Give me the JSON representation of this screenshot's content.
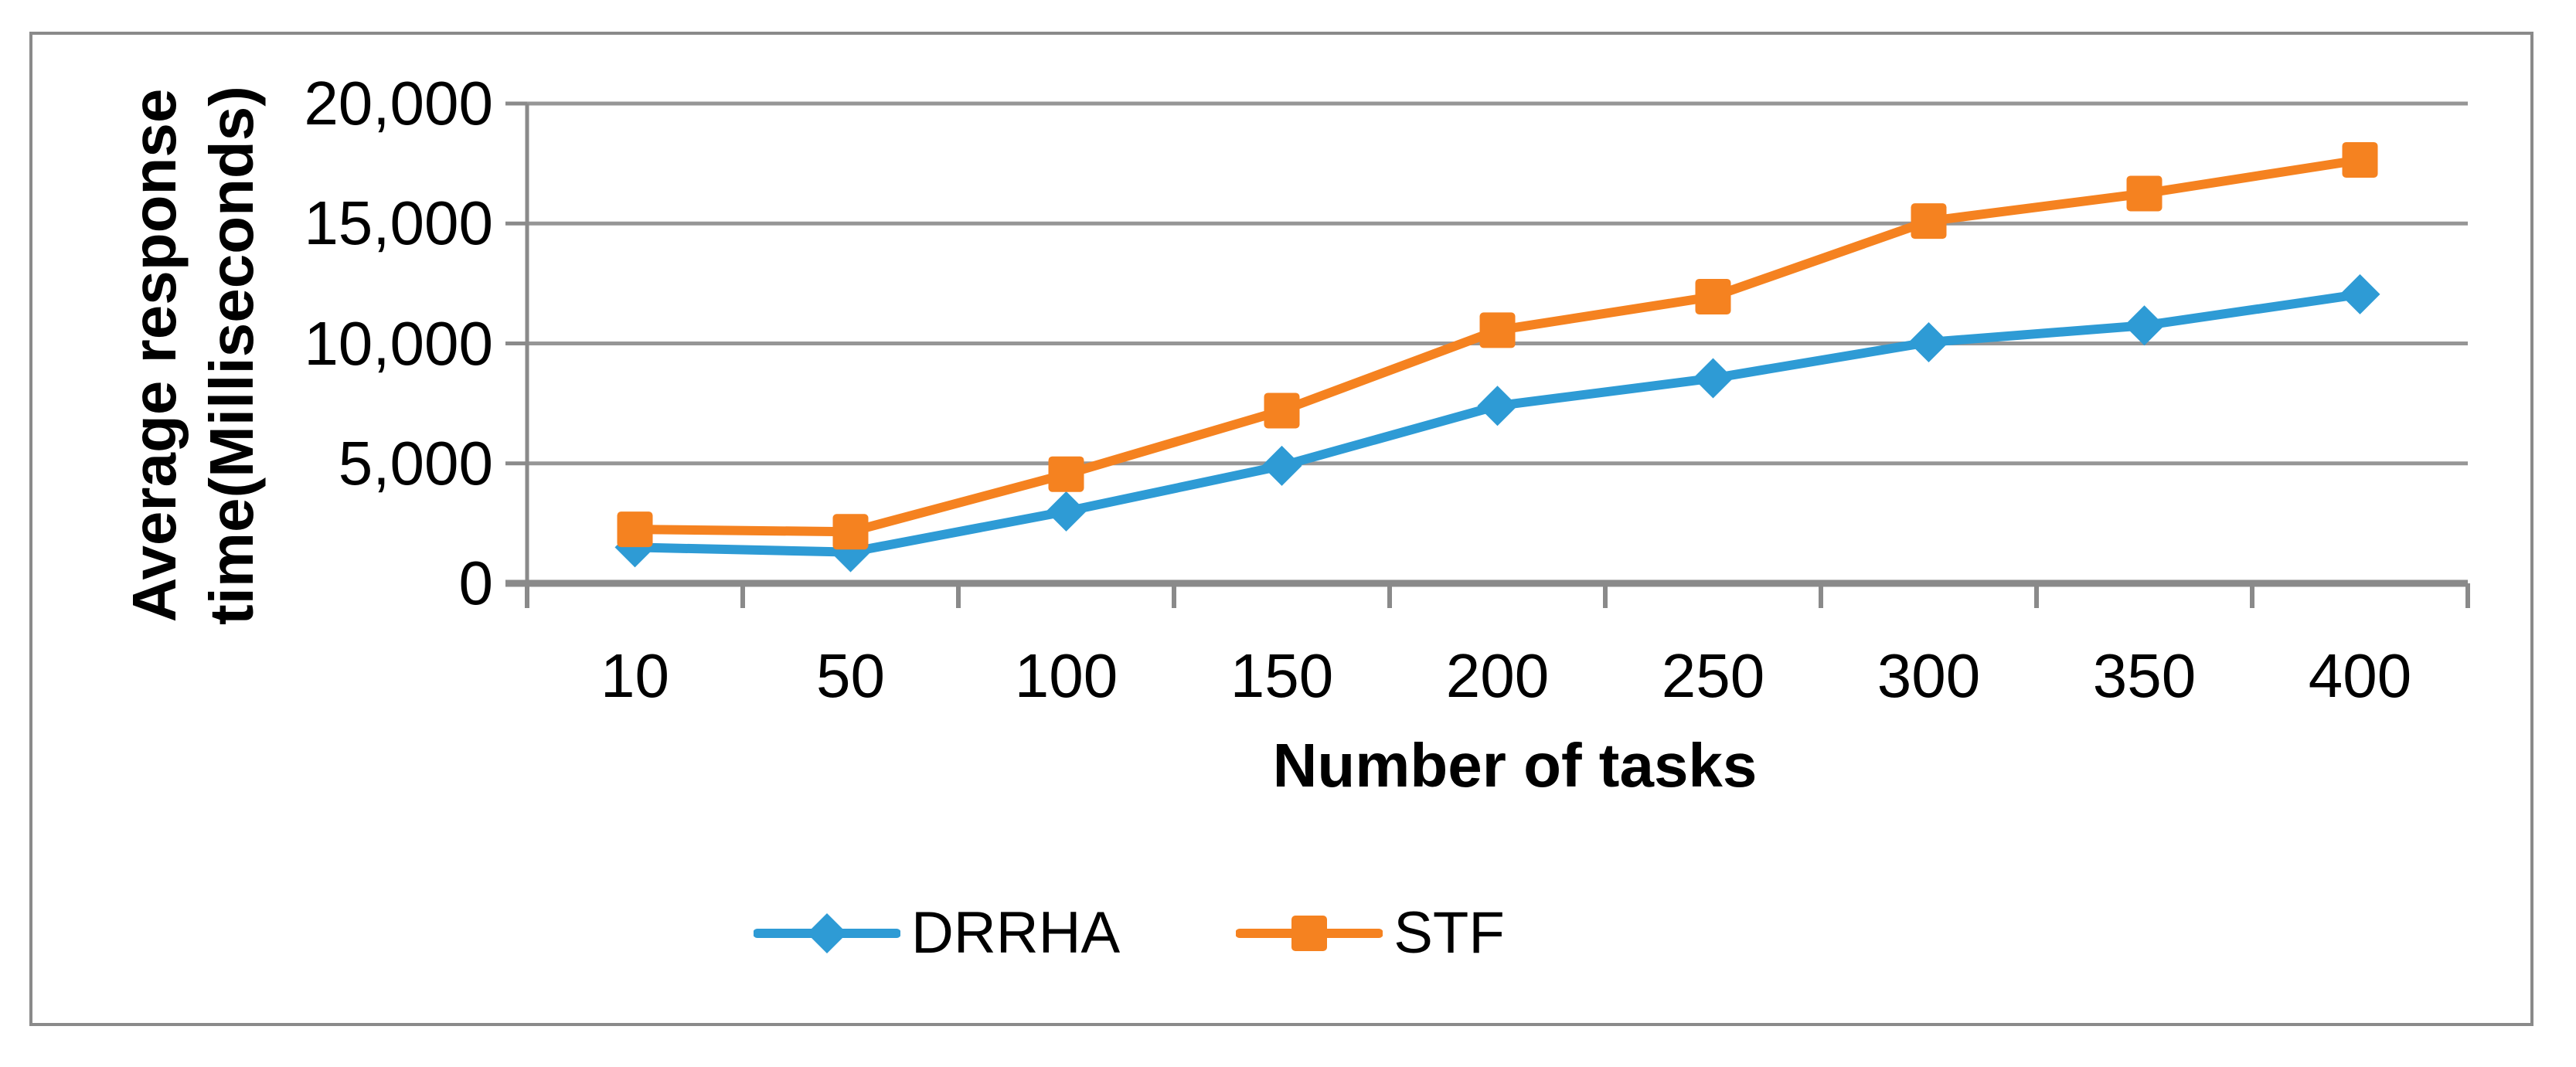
{
  "figure": {
    "border_color": "#8A8A8A",
    "background_color": "#FFFFFF"
  },
  "chart_data": {
    "type": "line",
    "title": "",
    "xlabel": "Number of tasks",
    "ylabel": "Average response time(Milliseconds)",
    "ylabel_lines": [
      "Average response",
      "time(Milliseconds)"
    ],
    "categories": [
      "10",
      "50",
      "100",
      "150",
      "200",
      "250",
      "300",
      "350",
      "400"
    ],
    "series": [
      {
        "name": "DRRHA",
        "color": "#2E9BD5",
        "marker": "diamond",
        "values": [
          1500,
          1300,
          3000,
          4900,
          7400,
          8550,
          10050,
          10750,
          12050
        ]
      },
      {
        "name": "STF",
        "color": "#F58220",
        "marker": "square",
        "values": [
          2250,
          2150,
          4550,
          7200,
          10550,
          11950,
          15100,
          16250,
          17650
        ]
      }
    ],
    "y_ticks": [
      {
        "label": "0",
        "value": 0
      },
      {
        "label": "5,000",
        "value": 5000
      },
      {
        "label": "10,000",
        "value": 10000
      },
      {
        "label": "15,000",
        "value": 15000
      },
      {
        "label": "20,000",
        "value": 20000
      }
    ],
    "ylim": [
      0,
      20000
    ],
    "grid": "horizontal",
    "legend_position": "bottom",
    "gridline_color": "#969696",
    "axis_color": "#8A8A8A",
    "text_color": "#000000"
  }
}
